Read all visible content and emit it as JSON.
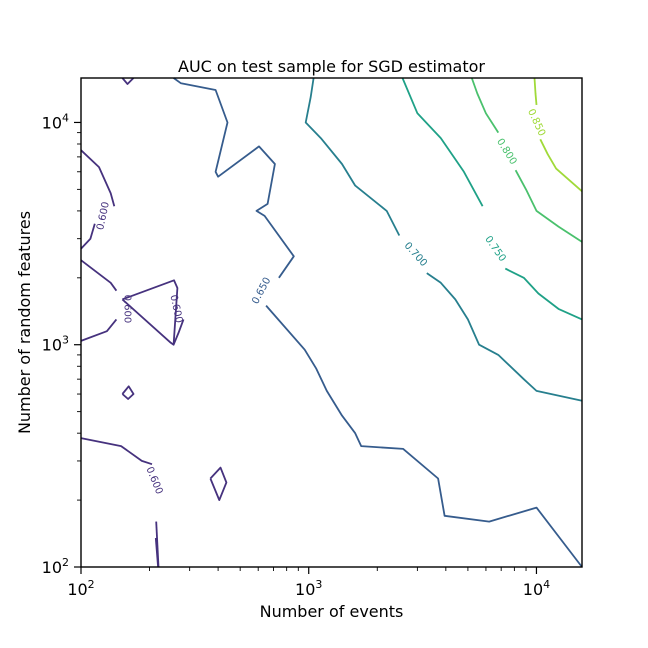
{
  "chart_data": {
    "type": "contour",
    "title": "AUC on test sample for SGD estimator",
    "xlabel": "Number of events",
    "ylabel": "Number of random features",
    "x_scale": "log",
    "y_scale": "log",
    "xlim": [
      100,
      15849
    ],
    "ylim": [
      100,
      15849
    ],
    "x_ticks": [
      {
        "value": 100,
        "base": "10",
        "exp": "2"
      },
      {
        "value": 1000,
        "base": "10",
        "exp": "3"
      },
      {
        "value": 10000,
        "base": "10",
        "exp": "4"
      }
    ],
    "y_ticks": [
      {
        "value": 100,
        "base": "10",
        "exp": "2"
      },
      {
        "value": 1000,
        "base": "10",
        "exp": "3"
      },
      {
        "value": 10000,
        "base": "10",
        "exp": "4"
      }
    ],
    "grid": false,
    "levels": [
      {
        "level": 0.6,
        "label": "0.600",
        "color": "#46327e",
        "segments": [
          [
            [
              100,
              7500
            ],
            [
              120,
              6300
            ],
            [
              135,
              4800
            ],
            [
              140,
              4200
            ]
          ],
          [
            [
              115,
              3500
            ],
            [
              110,
              3000
            ],
            [
              100,
              2700
            ]
          ],
          [
            [
              100,
              2400
            ],
            [
              135,
              1900
            ],
            [
              143,
              1750
            ]
          ],
          [
            [
              143,
              1300
            ],
            [
              130,
              1150
            ],
            [
              100,
              1040
            ]
          ],
          [
            [
              152,
              1600
            ],
            [
              256,
              1950
            ],
            [
              265,
              1800
            ],
            [
              255,
              1000
            ]
          ],
          [
            [
              152,
              1600
            ],
            [
              248,
              1020
            ],
            [
              255,
              1000
            ],
            [
              268,
              1130
            ],
            [
              282,
              1300
            ]
          ],
          [
            [
              152,
              600
            ],
            [
              162,
              650
            ],
            [
              170,
              600
            ],
            [
              161,
              570
            ],
            [
              152,
              600
            ]
          ],
          [
            [
              370,
              250
            ],
            [
              410,
              280
            ],
            [
              435,
              240
            ],
            [
              405,
              200
            ],
            [
              370,
              250
            ]
          ],
          [
            [
              100,
              380
            ],
            [
              150,
              350
            ],
            [
              185,
              300
            ],
            [
              205,
              290
            ]
          ],
          [
            [
              214,
              160
            ],
            [
              219,
              100
            ]
          ],
          [
            [
              213,
              135
            ],
            [
              218,
              100
            ]
          ],
          [
            [
              152,
              15900
            ],
            [
              160,
              14900
            ],
            [
              170,
              15900
            ]
          ]
        ],
        "labels": [
          {
            "x": 125,
            "y": 3800,
            "text": "0.600",
            "rotation": -78
          },
          {
            "x": 160,
            "y": 1450,
            "text": "0.600",
            "rotation": 90
          },
          {
            "x": 262,
            "y": 1450,
            "text": "0.600",
            "rotation": 78
          },
          {
            "x": 210,
            "y": 245,
            "text": "0.600",
            "rotation": 68
          }
        ]
      },
      {
        "level": 0.65,
        "label": "0.650",
        "color": "#365c8d",
        "segments": [
          [
            [
              255,
              15900
            ],
            [
              275,
              15000
            ],
            [
              390,
              14000
            ],
            [
              440,
              10000
            ],
            [
              390,
              6000
            ],
            [
              400,
              5700
            ],
            [
              605,
              7800
            ],
            [
              710,
              6500
            ],
            [
              660,
              4300
            ],
            [
              590,
              4000
            ],
            [
              640,
              3800
            ],
            [
              860,
              2500
            ],
            [
              740,
              2000
            ]
          ],
          [
            [
              650,
              1500
            ],
            [
              960,
              950
            ],
            [
              1080,
              780
            ],
            [
              1200,
              620
            ],
            [
              1400,
              480
            ],
            [
              1600,
              400
            ],
            [
              1700,
              350
            ],
            [
              2600,
              340
            ],
            [
              3700,
              250
            ],
            [
              3950,
              170
            ],
            [
              6200,
              160
            ],
            [
              10000,
              185
            ],
            [
              15849,
              100
            ]
          ]
        ],
        "labels": [
          {
            "x": 620,
            "y": 1750,
            "text": "0.650",
            "rotation": -62
          }
        ]
      },
      {
        "level": 0.7,
        "label": "0.700",
        "color": "#277f8e",
        "segments": [
          [
            [
              1050,
              15900
            ],
            [
              1020,
              13000
            ],
            [
              970,
              10000
            ],
            [
              1130,
              8500
            ],
            [
              1400,
              6500
            ],
            [
              1600,
              5200
            ],
            [
              2200,
              4000
            ],
            [
              2500,
              3100
            ]
          ],
          [
            [
              3300,
              2100
            ],
            [
              3800,
              1900
            ],
            [
              4400,
              1600
            ],
            [
              5000,
              1300
            ],
            [
              5600,
              1000
            ],
            [
              6800,
              900
            ],
            [
              8800,
              700
            ],
            [
              10000,
              620
            ],
            [
              15849,
              560
            ]
          ]
        ],
        "labels": [
          {
            "x": 2950,
            "y": 2550,
            "text": "0.700",
            "rotation": 48
          }
        ]
      },
      {
        "level": 0.75,
        "label": "0.750",
        "color": "#1fa187",
        "segments": [
          [
            [
              2580,
              15900
            ],
            [
              3000,
              11000
            ],
            [
              3800,
              8500
            ],
            [
              4800,
              6000
            ],
            [
              5800,
              4200
            ]
          ],
          [
            [
              7300,
              2200
            ],
            [
              8800,
              2000
            ],
            [
              10200,
              1700
            ],
            [
              12500,
              1450
            ],
            [
              15849,
              1300
            ]
          ]
        ],
        "labels": [
          {
            "x": 6600,
            "y": 2700,
            "text": "0.750",
            "rotation": 55
          }
        ]
      },
      {
        "level": 0.8,
        "label": "0.800",
        "color": "#4ac16d",
        "segments": [
          [
            [
              5200,
              15900
            ],
            [
              5500,
              13500
            ],
            [
              6000,
              11000
            ],
            [
              6800,
              9000
            ]
          ],
          [
            [
              8100,
              6100
            ],
            [
              9000,
              5000
            ],
            [
              10000,
              4000
            ],
            [
              12500,
              3400
            ],
            [
              15849,
              2900
            ]
          ]
        ],
        "labels": [
          {
            "x": 7400,
            "y": 7400,
            "text": "0.800",
            "rotation": 58
          }
        ]
      },
      {
        "level": 0.85,
        "label": "0.850",
        "color": "#a0da39",
        "segments": [
          [
            [
              9800,
              15900
            ],
            [
              9900,
              13500
            ],
            [
              10000,
              12000
            ]
          ],
          [
            [
              10400,
              8400
            ],
            [
              11200,
              7200
            ],
            [
              12200,
              6200
            ],
            [
              15849,
              4900
            ]
          ]
        ],
        "labels": [
          {
            "x": 10000,
            "y": 10000,
            "text": "0.850",
            "rotation": 65
          }
        ]
      }
    ]
  }
}
